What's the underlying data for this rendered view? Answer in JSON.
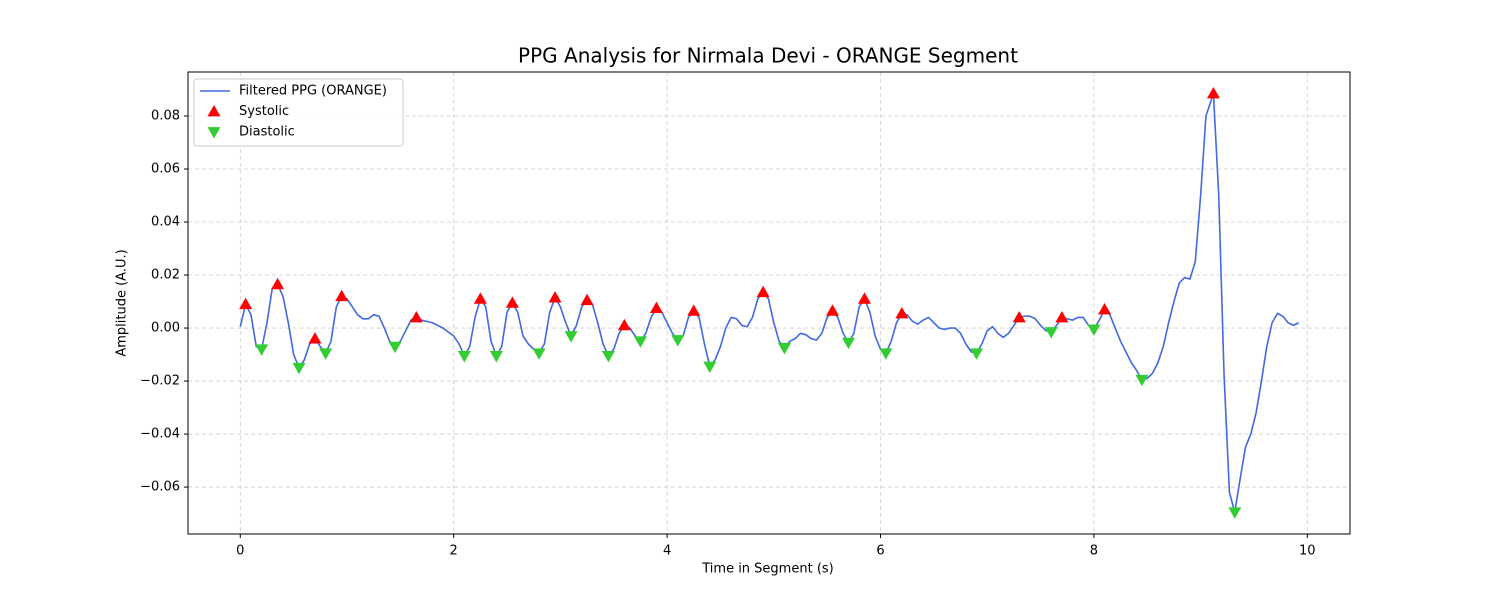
{
  "chart_data": {
    "type": "line",
    "title": "PPG Analysis for Nirmala Devi - ORANGE Segment",
    "xlabel": "Time in Segment (s)",
    "ylabel": "Amplitude (A.U.)",
    "xlim": [
      -0.49,
      10.4
    ],
    "ylim": [
      -0.0777,
      0.0966
    ],
    "xticks": [
      0,
      2,
      4,
      6,
      8,
      10
    ],
    "yticks": [
      {
        "value": -0.06,
        "label": "−0.06"
      },
      {
        "value": -0.04,
        "label": "−0.04"
      },
      {
        "value": -0.02,
        "label": "−0.02"
      },
      {
        "value": 0,
        "label": "0.00"
      },
      {
        "value": 0.02,
        "label": "0.02"
      },
      {
        "value": 0.04,
        "label": "0.04"
      },
      {
        "value": 0.06,
        "label": "0.06"
      },
      {
        "value": 0.08,
        "label": "0.08"
      }
    ],
    "grid": true,
    "legend": "upper left",
    "series": [
      {
        "name": "Filtered PPG (ORANGE)",
        "color": "#4169e1",
        "kind": "line",
        "x": [
          0,
          0.05,
          0.1,
          0.15,
          0.2,
          0.25,
          0.3,
          0.35,
          0.4,
          0.45,
          0.5,
          0.55,
          0.6,
          0.65,
          0.7,
          0.75,
          0.8,
          0.85,
          0.9,
          0.95,
          1.0,
          1.05,
          1.1,
          1.15,
          1.2,
          1.25,
          1.3,
          1.35,
          1.4,
          1.45,
          1.5,
          1.55,
          1.6,
          1.65,
          1.7,
          1.8,
          1.9,
          2.0,
          2.05,
          2.1,
          2.15,
          2.2,
          2.25,
          2.3,
          2.35,
          2.4,
          2.45,
          2.5,
          2.55,
          2.6,
          2.65,
          2.7,
          2.75,
          2.8,
          2.85,
          2.9,
          2.95,
          3.0,
          3.05,
          3.1,
          3.15,
          3.2,
          3.25,
          3.3,
          3.35,
          3.4,
          3.45,
          3.5,
          3.55,
          3.6,
          3.65,
          3.7,
          3.75,
          3.8,
          3.85,
          3.9,
          3.95,
          4.0,
          4.05,
          4.1,
          4.15,
          4.2,
          4.25,
          4.3,
          4.35,
          4.4,
          4.45,
          4.5,
          4.55,
          4.6,
          4.65,
          4.7,
          4.75,
          4.8,
          4.85,
          4.9,
          4.95,
          5.0,
          5.05,
          5.1,
          5.15,
          5.2,
          5.25,
          5.3,
          5.35,
          5.4,
          5.45,
          5.5,
          5.55,
          5.6,
          5.65,
          5.7,
          5.75,
          5.8,
          5.85,
          5.9,
          5.95,
          6.0,
          6.05,
          6.1,
          6.15,
          6.2,
          6.25,
          6.3,
          6.35,
          6.4,
          6.45,
          6.5,
          6.55,
          6.6,
          6.65,
          6.7,
          6.75,
          6.8,
          6.85,
          6.9,
          6.95,
          7.0,
          7.05,
          7.1,
          7.15,
          7.2,
          7.25,
          7.3,
          7.35,
          7.4,
          7.45,
          7.5,
          7.55,
          7.6,
          7.65,
          7.7,
          7.75,
          7.8,
          7.85,
          7.9,
          7.95,
          8.0,
          8.05,
          8.1,
          8.15,
          8.2,
          8.25,
          8.3,
          8.35,
          8.4,
          8.45,
          8.5,
          8.55,
          8.6,
          8.65,
          8.7,
          8.75,
          8.8,
          8.85,
          8.9,
          8.95,
          9.0,
          9.05,
          9.12,
          9.17,
          9.22,
          9.27,
          9.32,
          9.37,
          9.42,
          9.47,
          9.52,
          9.57,
          9.62,
          9.67,
          9.72,
          9.77,
          9.82,
          9.87,
          9.92
        ],
        "values": [
          0.0005,
          0.009,
          0.005,
          -0.007,
          -0.008,
          0.002,
          0.015,
          0.0165,
          0.012,
          0.002,
          -0.01,
          -0.015,
          -0.012,
          -0.006,
          -0.004,
          -0.007,
          -0.0095,
          -0.005,
          0.008,
          0.012,
          0.011,
          0.008,
          0.005,
          0.0035,
          0.0035,
          0.005,
          0.0045,
          0.0,
          -0.005,
          -0.007,
          -0.005,
          -0.001,
          0.003,
          0.004,
          0.003,
          0.002,
          0.0,
          -0.003,
          -0.006,
          -0.0105,
          -0.007,
          0.004,
          0.011,
          0.008,
          -0.005,
          -0.0105,
          -0.007,
          0.006,
          0.0095,
          0.006,
          -0.003,
          -0.006,
          -0.008,
          -0.0095,
          -0.006,
          0.006,
          0.0115,
          0.008,
          0.002,
          -0.003,
          0.001,
          0.008,
          0.0105,
          0.009,
          0.002,
          -0.006,
          -0.0105,
          -0.008,
          -0.002,
          0.001,
          0.0,
          -0.003,
          -0.005,
          -0.002,
          0.004,
          0.0075,
          0.006,
          0.002,
          -0.002,
          -0.0045,
          -0.003,
          0.004,
          0.0065,
          0.004,
          -0.006,
          -0.0145,
          -0.012,
          -0.007,
          0.0,
          0.004,
          0.0035,
          0.001,
          0.0005,
          0.004,
          0.011,
          0.0135,
          0.011,
          0.002,
          -0.005,
          -0.0075,
          -0.005,
          -0.004,
          -0.002,
          -0.0025,
          -0.004,
          -0.0045,
          -0.002,
          0.004,
          0.0065,
          0.004,
          -0.002,
          -0.0055,
          -0.002,
          0.008,
          0.011,
          0.006,
          -0.003,
          -0.008,
          -0.0095,
          -0.005,
          0.002,
          0.0055,
          0.005,
          0.0025,
          0.0015,
          0.003,
          0.004,
          0.002,
          0.0,
          -0.0005,
          0.0,
          0.0,
          -0.002,
          -0.006,
          -0.009,
          -0.0095,
          -0.006,
          -0.001,
          0.0005,
          -0.002,
          -0.0035,
          -0.002,
          0.001,
          0.004,
          0.0045,
          0.0045,
          0.0035,
          0.001,
          -0.001,
          -0.0015,
          0.001,
          0.004,
          0.0035,
          0.003,
          0.004,
          0.004,
          0.001,
          -0.0005,
          0.003,
          0.007,
          0.005,
          0.0,
          -0.005,
          -0.009,
          -0.013,
          -0.016,
          -0.0195,
          -0.019,
          -0.017,
          -0.013,
          -0.007,
          0.002,
          0.01,
          0.017,
          0.019,
          0.0185,
          0.025,
          0.05,
          0.08,
          0.0885,
          0.05,
          -0.018,
          -0.062,
          -0.0695,
          -0.057,
          -0.045,
          -0.04,
          -0.032,
          -0.02,
          -0.007,
          0.002,
          0.0055,
          0.0045,
          0.002,
          0.001,
          0.002
        ]
      },
      {
        "name": "Systolic",
        "color": "#ff0000",
        "kind": "up",
        "x": [
          0.05,
          0.35,
          0.7,
          0.95,
          1.65,
          2.25,
          2.55,
          2.95,
          3.25,
          3.6,
          3.9,
          4.25,
          4.9,
          5.55,
          5.85,
          6.2,
          7.3,
          7.7,
          8.1,
          9.12
        ],
        "values": [
          0.009,
          0.0165,
          -0.004,
          0.012,
          0.004,
          0.011,
          0.0095,
          0.0115,
          0.0105,
          0.001,
          0.0075,
          0.0065,
          0.0135,
          0.0065,
          0.011,
          0.0055,
          0.004,
          0.004,
          0.007,
          0.0885
        ]
      },
      {
        "name": "Diastolic",
        "color": "#32cd32",
        "kind": "down",
        "x": [
          0.2,
          0.55,
          0.8,
          1.45,
          2.1,
          2.4,
          2.8,
          3.1,
          3.45,
          3.75,
          4.1,
          4.4,
          5.1,
          5.7,
          6.05,
          6.9,
          7.6,
          8.0,
          8.45,
          9.32
        ],
        "values": [
          -0.008,
          -0.015,
          -0.0095,
          -0.007,
          -0.0105,
          -0.0105,
          -0.0095,
          -0.003,
          -0.0105,
          -0.005,
          -0.0045,
          -0.0145,
          -0.0075,
          -0.0055,
          -0.0095,
          -0.0095,
          -0.0015,
          -0.0005,
          -0.0195,
          -0.0695
        ]
      }
    ]
  }
}
